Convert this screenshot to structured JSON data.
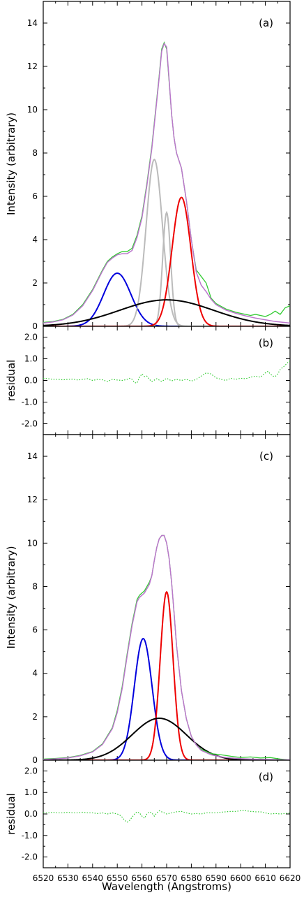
{
  "chart_data": [
    {
      "id": "a",
      "type": "line",
      "panel_label": "(a)",
      "ylabel": "Intensity (arbitrary)",
      "xlim": [
        6520,
        6620
      ],
      "ylim": [
        0,
        15
      ],
      "yticks": [
        0,
        2,
        4,
        6,
        8,
        10,
        12,
        14
      ],
      "observed": {
        "color": "#33cc33",
        "x": [
          6520,
          6524,
          6528,
          6532,
          6536,
          6540,
          6544,
          6546,
          6548,
          6550,
          6552,
          6554,
          6556,
          6558,
          6560,
          6562,
          6564,
          6566,
          6567,
          6568,
          6569,
          6570,
          6571,
          6572,
          6573,
          6574,
          6576,
          6578,
          6580,
          6582,
          6584,
          6586,
          6588,
          6590,
          6594,
          6598,
          6602,
          6604,
          6606,
          6608,
          6610,
          6612,
          6614,
          6616,
          6618,
          6620
        ],
        "y": [
          0.18,
          0.22,
          0.32,
          0.55,
          1.0,
          1.7,
          2.6,
          3.0,
          3.2,
          3.35,
          3.45,
          3.45,
          3.6,
          4.2,
          5.1,
          6.6,
          8.3,
          10.5,
          11.6,
          12.8,
          13.1,
          12.8,
          11.3,
          9.8,
          8.7,
          8.0,
          7.3,
          5.8,
          4.0,
          2.6,
          2.3,
          2.0,
          1.3,
          1.05,
          0.8,
          0.65,
          0.55,
          0.5,
          0.55,
          0.5,
          0.45,
          0.55,
          0.7,
          0.55,
          0.85,
          0.95
        ]
      },
      "fit_total": {
        "color": "#bb77cc",
        "x": [
          6520,
          6524,
          6528,
          6532,
          6536,
          6540,
          6544,
          6546,
          6548,
          6550,
          6552,
          6554,
          6556,
          6558,
          6560,
          6562,
          6564,
          6566,
          6567,
          6568,
          6569,
          6570,
          6571,
          6572,
          6573,
          6574,
          6576,
          6578,
          6580,
          6582,
          6584,
          6586,
          6588,
          6590,
          6594,
          6598,
          6602,
          6606,
          6610,
          6614,
          6620
        ],
        "y": [
          0.15,
          0.2,
          0.3,
          0.52,
          0.95,
          1.65,
          2.55,
          2.95,
          3.15,
          3.3,
          3.35,
          3.35,
          3.5,
          4.1,
          5.0,
          6.5,
          8.2,
          10.4,
          11.5,
          12.7,
          13.05,
          12.9,
          11.4,
          9.8,
          8.7,
          8.0,
          7.3,
          5.8,
          4.0,
          2.5,
          1.9,
          1.6,
          1.25,
          1.0,
          0.75,
          0.6,
          0.48,
          0.38,
          0.3,
          0.22,
          0.15
        ]
      },
      "components": [
        {
          "color": "#0000dd",
          "amp": 2.45,
          "center": 6550,
          "sigma": 5.5
        },
        {
          "color": "#bbbbbb",
          "amp": 7.7,
          "center": 6565,
          "sigma": 3.3
        },
        {
          "color": "#bbbbbb",
          "amp": 5.25,
          "center": 6570,
          "sigma": 1.6
        },
        {
          "color": "#ee0000",
          "amp": 5.95,
          "center": 6576,
          "sigma": 3.8
        },
        {
          "color": "#000000",
          "amp": 1.22,
          "center": 6570,
          "sigma": 19
        }
      ]
    },
    {
      "id": "b",
      "type": "scatter",
      "panel_label": "(b)",
      "ylabel": "residual",
      "xlim": [
        6520,
        6620
      ],
      "ylim": [
        -2.5,
        2.5
      ],
      "yticks": [
        2.0,
        1.0,
        0.0,
        -1.0,
        -2.0
      ],
      "ytick_labels": [
        "2.0",
        "1.0",
        "0.0",
        "-1.0",
        "-2.0"
      ],
      "residual": {
        "color": "#33cc33",
        "x": [
          6520,
          6522,
          6524,
          6526,
          6528,
          6530,
          6532,
          6534,
          6536,
          6538,
          6540,
          6542,
          6544,
          6546,
          6548,
          6550,
          6552,
          6554,
          6555,
          6556,
          6557,
          6558,
          6559,
          6560,
          6561,
          6562,
          6563,
          6564,
          6566,
          6568,
          6570,
          6572,
          6574,
          6576,
          6578,
          6580,
          6582,
          6584,
          6586,
          6588,
          6590,
          6592,
          6594,
          6596,
          6598,
          6600,
          6602,
          6604,
          6606,
          6608,
          6610,
          6611,
          6612,
          6613,
          6614,
          6615,
          6616,
          6617,
          6618,
          6619,
          6620
        ],
        "y": [
          0.1,
          0.08,
          0.05,
          0.05,
          0.03,
          0.05,
          0.06,
          0.02,
          0.05,
          0.08,
          0.0,
          0.05,
          0.03,
          -0.05,
          0.05,
          0.02,
          0.0,
          0.05,
          0.1,
          0.05,
          -0.1,
          -0.12,
          0.15,
          0.3,
          0.18,
          0.2,
          0.05,
          -0.05,
          0.08,
          -0.05,
          0.1,
          -0.02,
          0.05,
          0.0,
          0.05,
          -0.03,
          0.05,
          0.2,
          0.35,
          0.3,
          0.12,
          0.05,
          0.0,
          0.1,
          0.05,
          0.1,
          0.08,
          0.15,
          0.2,
          0.15,
          0.35,
          0.42,
          0.3,
          0.2,
          0.18,
          0.3,
          0.5,
          0.6,
          0.7,
          0.82,
          0.9
        ]
      }
    },
    {
      "id": "c",
      "type": "line",
      "panel_label": "(c)",
      "ylabel": "Intensity (arbitrary)",
      "xlim": [
        6520,
        6620
      ],
      "ylim": [
        0,
        15
      ],
      "yticks": [
        0,
        2,
        4,
        6,
        8,
        10,
        12,
        14
      ],
      "observed": {
        "color": "#33cc33",
        "x": [
          6520,
          6525,
          6530,
          6535,
          6540,
          6544,
          6548,
          6550,
          6552,
          6554,
          6556,
          6558,
          6559,
          6560,
          6561,
          6562,
          6563,
          6564,
          6565,
          6566,
          6567,
          6568,
          6569,
          6570,
          6571,
          6572,
          6573,
          6574,
          6576,
          6578,
          6580,
          6582,
          6584,
          6588,
          6592,
          6596,
          6600,
          6604,
          6608,
          6612,
          6616,
          6620
        ],
        "y": [
          0.05,
          0.08,
          0.12,
          0.22,
          0.4,
          0.75,
          1.5,
          2.3,
          3.4,
          4.9,
          6.3,
          7.4,
          7.6,
          7.7,
          7.8,
          8.0,
          8.2,
          8.5,
          9.2,
          9.8,
          10.2,
          10.35,
          10.35,
          10.0,
          9.3,
          8.2,
          6.8,
          5.3,
          3.2,
          1.9,
          1.1,
          0.7,
          0.5,
          0.3,
          0.25,
          0.18,
          0.12,
          0.15,
          0.1,
          0.12,
          0.05,
          0.0
        ]
      },
      "fit_total": {
        "color": "#bb77cc",
        "x": [
          6520,
          6525,
          6530,
          6535,
          6540,
          6544,
          6548,
          6550,
          6552,
          6554,
          6556,
          6558,
          6559,
          6560,
          6561,
          6562,
          6563,
          6564,
          6565,
          6566,
          6567,
          6568,
          6569,
          6570,
          6571,
          6572,
          6573,
          6574,
          6576,
          6578,
          6580,
          6582,
          6584,
          6588,
          6592,
          6596,
          6600,
          6604,
          6608,
          6612,
          6616,
          6620
        ],
        "y": [
          0.03,
          0.06,
          0.1,
          0.2,
          0.38,
          0.72,
          1.45,
          2.2,
          3.3,
          4.8,
          6.2,
          7.3,
          7.5,
          7.6,
          7.7,
          7.9,
          8.1,
          8.5,
          9.2,
          9.8,
          10.2,
          10.35,
          10.35,
          10.0,
          9.3,
          8.2,
          6.8,
          5.3,
          3.2,
          1.9,
          1.1,
          0.7,
          0.45,
          0.25,
          0.15,
          0.1,
          0.07,
          0.05,
          0.04,
          0.03,
          0.02,
          0.01
        ]
      },
      "components": [
        {
          "color": "#0000dd",
          "amp": 5.6,
          "center": 6560.5,
          "sigma": 3.6
        },
        {
          "color": "#ee0000",
          "amp": 7.75,
          "center": 6570,
          "sigma": 2.6
        },
        {
          "color": "#000000",
          "amp": 1.93,
          "center": 6567,
          "sigma": 11
        }
      ]
    },
    {
      "id": "d",
      "type": "scatter",
      "panel_label": "(d)",
      "ylabel": "residual",
      "xlabel": "Wavelength (Angstroms)",
      "xlim": [
        6520,
        6620
      ],
      "ylim": [
        -2.5,
        2.5
      ],
      "yticks": [
        2.0,
        1.0,
        0.0,
        -1.0,
        -2.0
      ],
      "ytick_labels": [
        "2.0",
        "1.0",
        "0.0",
        "-1.0",
        "-2.0"
      ],
      "xticks": [
        6520,
        6530,
        6540,
        6550,
        6560,
        6570,
        6580,
        6590,
        6600,
        6610,
        6620
      ],
      "xtick_labels": [
        "6520",
        "6530",
        "6540",
        "6550",
        "6560",
        "6570",
        "6580",
        "6590",
        "6600",
        "6610",
        "6620"
      ],
      "residual": {
        "color": "#33cc33",
        "x": [
          6520,
          6522,
          6524,
          6526,
          6528,
          6530,
          6532,
          6534,
          6536,
          6538,
          6540,
          6542,
          6544,
          6546,
          6548,
          6550,
          6551,
          6552,
          6553,
          6554,
          6555,
          6556,
          6557,
          6558,
          6559,
          6560,
          6561,
          6562,
          6563,
          6564,
          6565,
          6566,
          6567,
          6568,
          6569,
          6570,
          6572,
          6574,
          6576,
          6578,
          6580,
          6582,
          6584,
          6586,
          6588,
          6590,
          6592,
          6594,
          6596,
          6598,
          6600,
          6602,
          6604,
          6606,
          6608,
          6610,
          6612,
          6614,
          6616,
          6618,
          6620
        ],
        "y": [
          0.05,
          0.05,
          0.08,
          0.05,
          0.05,
          0.08,
          0.05,
          0.05,
          0.08,
          0.05,
          0.05,
          0.02,
          0.05,
          0.0,
          0.05,
          0.0,
          -0.05,
          -0.15,
          -0.3,
          -0.38,
          -0.3,
          -0.15,
          0.0,
          0.1,
          0.05,
          -0.1,
          -0.2,
          0.0,
          0.1,
          0.05,
          -0.1,
          0.05,
          0.15,
          0.1,
          0.05,
          0.0,
          0.05,
          0.1,
          0.12,
          0.05,
          0.0,
          0.02,
          0.0,
          0.05,
          0.05,
          0.05,
          0.08,
          0.1,
          0.12,
          0.12,
          0.15,
          0.15,
          0.12,
          0.1,
          0.1,
          0.05,
          0.0,
          0.02,
          0.0,
          0.02,
          0.05
        ]
      }
    }
  ]
}
